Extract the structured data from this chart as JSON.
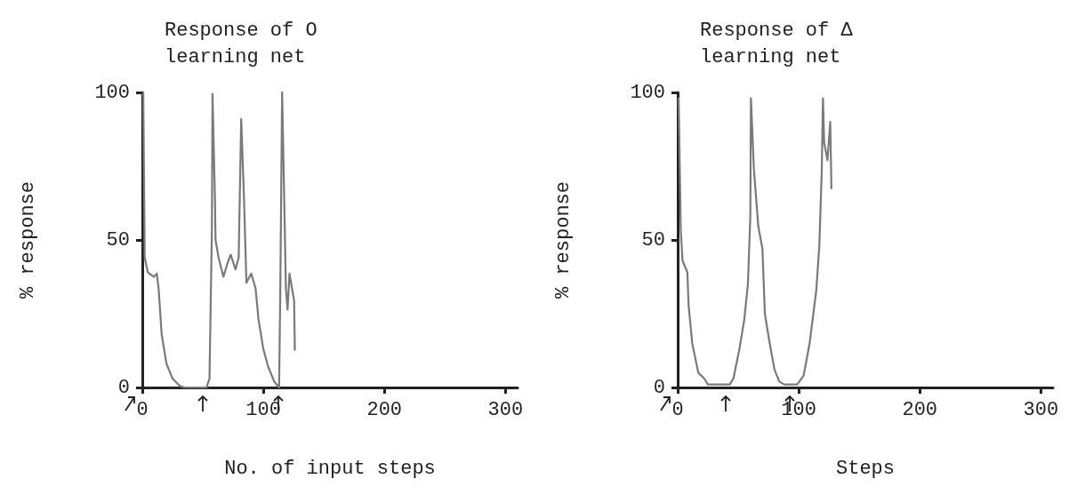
{
  "chart_data": [
    {
      "type": "line",
      "title": "Response of O learning net",
      "xlabel": "No. of input steps",
      "ylabel": "% response",
      "xlim": [
        0,
        310
      ],
      "xticks": [
        0,
        100,
        200,
        300
      ],
      "ylim": [
        0,
        100
      ],
      "yticks": [
        0,
        50,
        100
      ],
      "grid": false,
      "marker": "none",
      "line_style": "solid",
      "series": [
        {
          "color": "#7a7a7a",
          "x": [
            0.8,
            2,
            4.6,
            9.7,
            12,
            13.5,
            16,
            20,
            25,
            31,
            35,
            53,
            55.5,
            57.5,
            58,
            60,
            60.5,
            63,
            67,
            70.7,
            73,
            77,
            79.6,
            81.7,
            84,
            86,
            90,
            93.6,
            96,
            100,
            104,
            109,
            113,
            114,
            115.5,
            117,
            118.6,
            120,
            121.6,
            123.7,
            125.4,
            126
          ],
          "values": [
            100,
            44,
            39,
            37.5,
            38.6,
            33.5,
            18,
            8,
            3,
            0.5,
            0,
            0,
            3,
            54,
            99.5,
            64,
            50,
            44,
            37.5,
            42.5,
            45,
            40,
            44,
            91,
            64,
            35.5,
            38.6,
            33.5,
            23,
            13,
            7,
            2,
            0,
            33.5,
            100,
            69,
            33.5,
            26.4,
            38.6,
            33.5,
            29.4,
            12.7
          ]
        }
      ]
    },
    {
      "type": "line",
      "title": "Response of Δ learning net",
      "xlabel": "Steps",
      "ylabel": "% response",
      "xlim": [
        0,
        310
      ],
      "xticks": [
        0,
        100,
        200,
        300
      ],
      "ylim": [
        0,
        100
      ],
      "yticks": [
        0,
        50,
        100
      ],
      "grid": false,
      "marker": "none",
      "line_style": "solid",
      "series": [
        {
          "color": "#7a7a7a",
          "x": [
            0.8,
            2.6,
            4,
            8,
            9,
            12,
            17,
            22,
            25,
            43,
            46,
            51,
            55,
            58,
            60,
            60.5,
            63,
            66.6,
            70,
            72,
            76,
            80,
            84,
            88,
            98.7,
            104,
            109,
            114.5,
            117,
            119,
            120,
            121,
            123.7,
            126,
            127
          ],
          "values": [
            98,
            53,
            43,
            39,
            28,
            15,
            5,
            3,
            1,
            1,
            3,
            13,
            23,
            35,
            58,
            98,
            73.6,
            54.6,
            47,
            25,
            15,
            6,
            2,
            1,
            1,
            4,
            15,
            33,
            48,
            73.6,
            98,
            83,
            77,
            90,
            67.5
          ]
        }
      ]
    }
  ]
}
